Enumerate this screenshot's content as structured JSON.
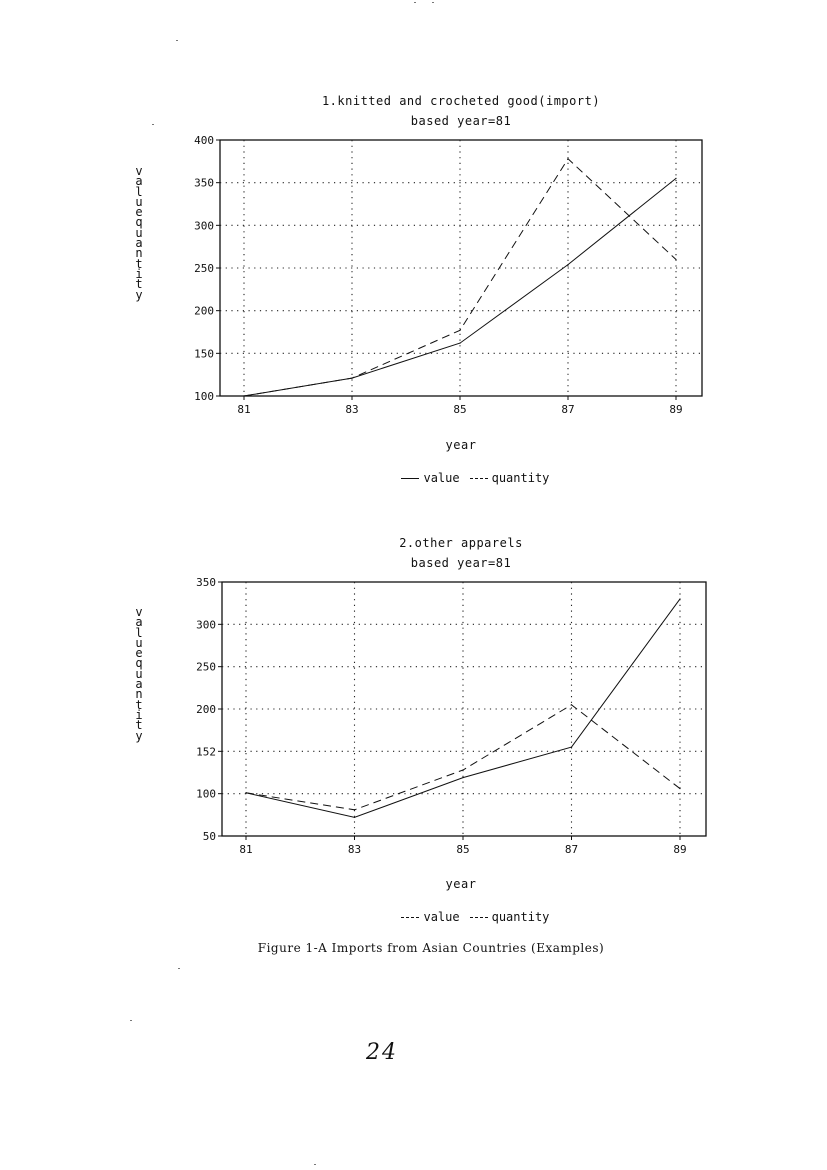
{
  "chart_data": [
    {
      "type": "line",
      "title": "1.knitted and crocheted good(import)",
      "subtitle": "based year=81",
      "xlabel": "year",
      "ylabel": "value quantity",
      "x": [
        "81",
        "83",
        "85",
        "87",
        "89"
      ],
      "ylim": [
        100,
        400
      ],
      "yticks": [
        "400",
        "350",
        "300",
        "250",
        "200",
        "150",
        "100"
      ],
      "grid": true,
      "legend": "bottom-center",
      "series": [
        {
          "name": "value",
          "style": "solid",
          "values": [
            100,
            121,
            162,
            254,
            355
          ]
        },
        {
          "name": "quantity",
          "style": "dashed",
          "values": [
            100,
            121,
            177,
            378,
            260
          ]
        }
      ]
    },
    {
      "type": "line",
      "title": "2.other apparels",
      "subtitle": "based year=81",
      "xlabel": "year",
      "ylabel": "value quantity",
      "x": [
        "81",
        "83",
        "85",
        "87",
        "89"
      ],
      "ylim": [
        50,
        350
      ],
      "yticks": [
        "350",
        "300",
        "250",
        "200",
        "152",
        "100",
        "50"
      ],
      "grid": true,
      "legend": "bottom-center",
      "series": [
        {
          "name": "value",
          "style": "solid",
          "values": [
            101,
            72,
            119,
            155,
            330
          ]
        },
        {
          "name": "quantity",
          "style": "dashed",
          "values": [
            101,
            81,
            128,
            205,
            106
          ]
        }
      ]
    }
  ],
  "caption": "Figure 1-A Imports from Asian Countries (Examples)",
  "page_number": "24"
}
